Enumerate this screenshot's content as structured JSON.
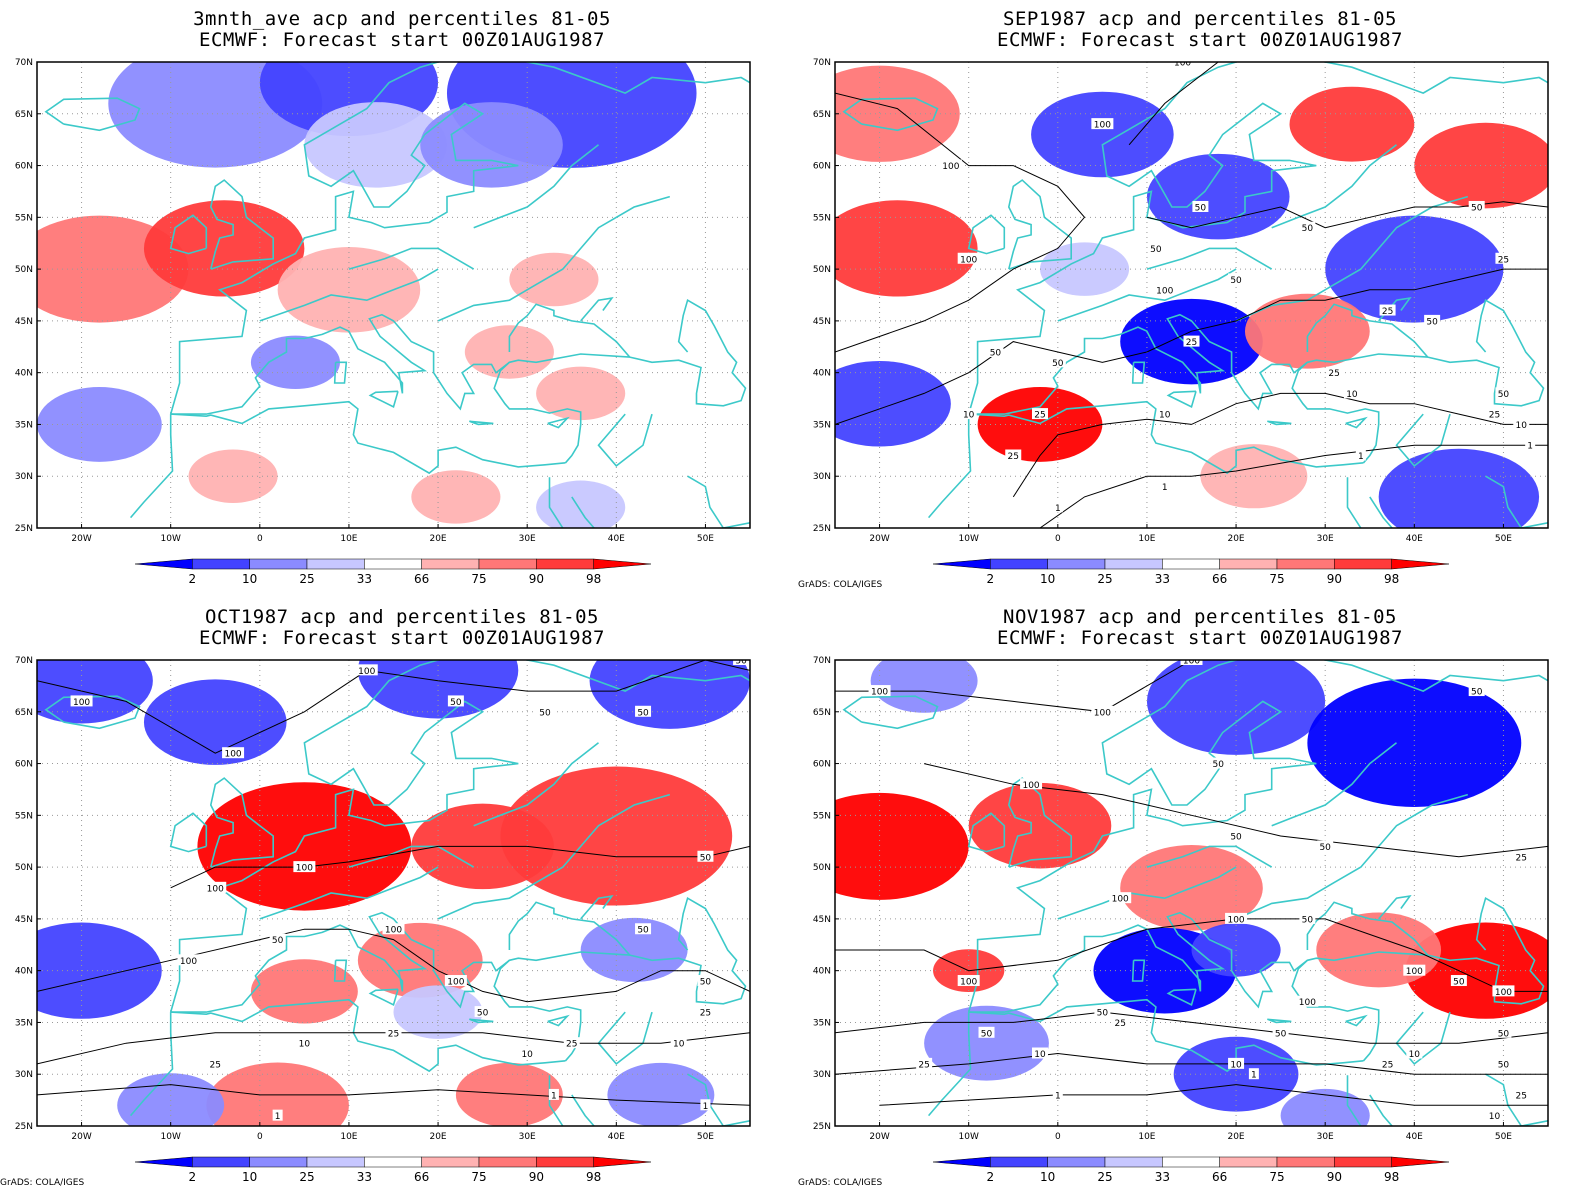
{
  "panels": [
    {
      "title_line1": "3mnth_ave acp and percentiles 81-05",
      "title_line2": "ECMWF: Forecast start 00Z01AUG1987",
      "credit": "",
      "contour_labels": [],
      "blobs": [
        {
          "lon": -5,
          "lat": 66,
          "r": 12,
          "c": "#8b8bff"
        },
        {
          "lon": 10,
          "lat": 68,
          "r": 10,
          "c": "#4343ff"
        },
        {
          "lon": 35,
          "lat": 67,
          "r": 14,
          "c": "#4343ff"
        },
        {
          "lon": 13,
          "lat": 62,
          "r": 8,
          "c": "#c7c7ff"
        },
        {
          "lon": 26,
          "lat": 62,
          "r": 8,
          "c": "#8b8bff"
        },
        {
          "lon": -18,
          "lat": 50,
          "r": 10,
          "c": "#ff7777"
        },
        {
          "lon": -4,
          "lat": 52,
          "r": 9,
          "c": "#ff3b3b"
        },
        {
          "lon": 10,
          "lat": 48,
          "r": 8,
          "c": "#ffb2b2"
        },
        {
          "lon": 33,
          "lat": 49,
          "r": 5,
          "c": "#ffb2b2"
        },
        {
          "lon": -18,
          "lat": 35,
          "r": 7,
          "c": "#8b8bff"
        },
        {
          "lon": 4,
          "lat": 41,
          "r": 5,
          "c": "#8b8bff"
        },
        {
          "lon": 36,
          "lat": 38,
          "r": 5,
          "c": "#ffb2b2"
        },
        {
          "lon": 28,
          "lat": 42,
          "r": 5,
          "c": "#ffb2b2"
        },
        {
          "lon": -3,
          "lat": 30,
          "r": 5,
          "c": "#ffb2b2"
        },
        {
          "lon": 22,
          "lat": 28,
          "r": 5,
          "c": "#ffb2b2"
        },
        {
          "lon": 36,
          "lat": 27,
          "r": 5,
          "c": "#c7c7ff"
        }
      ]
    },
    {
      "title_line1": "SEP1987 acp and percentiles 81-05",
      "title_line2": "ECMWF: Forecast start 00Z01AUG1987",
      "credit": "GrADS: COLA/IGES",
      "contour_labels": [
        {
          "t": "100",
          "lon": 14,
          "lat": 70
        },
        {
          "t": "100",
          "lon": 5,
          "lat": 64
        },
        {
          "t": "100",
          "lon": -12,
          "lat": 60
        },
        {
          "t": "50",
          "lon": 16,
          "lat": 56
        },
        {
          "t": "50",
          "lon": 47,
          "lat": 56
        },
        {
          "t": "50",
          "lon": 28,
          "lat": 54
        },
        {
          "t": "50",
          "lon": 11,
          "lat": 52
        },
        {
          "t": "100",
          "lon": -10,
          "lat": 51
        },
        {
          "t": "50",
          "lon": 20,
          "lat": 49
        },
        {
          "t": "25",
          "lon": 50,
          "lat": 51
        },
        {
          "t": "100",
          "lon": 12,
          "lat": 48
        },
        {
          "t": "25",
          "lon": 37,
          "lat": 46
        },
        {
          "t": "50",
          "lon": 42,
          "lat": 45
        },
        {
          "t": "25",
          "lon": 15,
          "lat": 43
        },
        {
          "t": "50",
          "lon": -7,
          "lat": 42
        },
        {
          "t": "50",
          "lon": 0,
          "lat": 41
        },
        {
          "t": "25",
          "lon": 31,
          "lat": 40
        },
        {
          "t": "10",
          "lon": 33,
          "lat": 38
        },
        {
          "t": "50",
          "lon": 50,
          "lat": 38
        },
        {
          "t": "25",
          "lon": 49,
          "lat": 36
        },
        {
          "t": "10",
          "lon": -10,
          "lat": 36
        },
        {
          "t": "25",
          "lon": -2,
          "lat": 36
        },
        {
          "t": "10",
          "lon": 12,
          "lat": 36
        },
        {
          "t": "10",
          "lon": 52,
          "lat": 35
        },
        {
          "t": "1",
          "lon": 34,
          "lat": 32
        },
        {
          "t": "25",
          "lon": -5,
          "lat": 32
        },
        {
          "t": "1",
          "lon": 12,
          "lat": 29
        },
        {
          "t": "1",
          "lon": 0,
          "lat": 27
        },
        {
          "t": "1",
          "lon": 53,
          "lat": 33
        }
      ],
      "blobs": [
        {
          "lon": -20,
          "lat": 65,
          "r": 9,
          "c": "#ff7777"
        },
        {
          "lon": 5,
          "lat": 63,
          "r": 8,
          "c": "#4343ff"
        },
        {
          "lon": 18,
          "lat": 57,
          "r": 8,
          "c": "#4343ff"
        },
        {
          "lon": 33,
          "lat": 64,
          "r": 7,
          "c": "#ff3b3b"
        },
        {
          "lon": 48,
          "lat": 60,
          "r": 8,
          "c": "#ff3b3b"
        },
        {
          "lon": -18,
          "lat": 52,
          "r": 9,
          "c": "#ff3b3b"
        },
        {
          "lon": 40,
          "lat": 50,
          "r": 10,
          "c": "#4343ff"
        },
        {
          "lon": 15,
          "lat": 43,
          "r": 8,
          "c": "#0000ff"
        },
        {
          "lon": 28,
          "lat": 44,
          "r": 7,
          "c": "#ff7777"
        },
        {
          "lon": -20,
          "lat": 37,
          "r": 8,
          "c": "#4343ff"
        },
        {
          "lon": -2,
          "lat": 35,
          "r": 7,
          "c": "#ff0000"
        },
        {
          "lon": 45,
          "lat": 28,
          "r": 9,
          "c": "#4343ff"
        },
        {
          "lon": 3,
          "lat": 50,
          "r": 5,
          "c": "#c7c7ff"
        },
        {
          "lon": 22,
          "lat": 30,
          "r": 6,
          "c": "#ffb2b2"
        }
      ]
    },
    {
      "title_line1": "OCT1987 acp and percentiles 81-05",
      "title_line2": "ECMWF: Forecast start 00Z01AUG1987",
      "credit": "GrADS: COLA/IGES",
      "contour_labels": [
        {
          "t": "100",
          "lon": -20,
          "lat": 66
        },
        {
          "t": "100",
          "lon": 12,
          "lat": 69
        },
        {
          "t": "50",
          "lon": 54,
          "lat": 70
        },
        {
          "t": "50",
          "lon": 22,
          "lat": 66
        },
        {
          "t": "50",
          "lon": 32,
          "lat": 65
        },
        {
          "t": "50",
          "lon": 43,
          "lat": 65
        },
        {
          "t": "100",
          "lon": -3,
          "lat": 61
        },
        {
          "t": "100",
          "lon": 5,
          "lat": 50
        },
        {
          "t": "50",
          "lon": 50,
          "lat": 51
        },
        {
          "t": "100",
          "lon": -5,
          "lat": 48
        },
        {
          "t": "100",
          "lon": 15,
          "lat": 44
        },
        {
          "t": "50",
          "lon": 43,
          "lat": 44
        },
        {
          "t": "50",
          "lon": 2,
          "lat": 43
        },
        {
          "t": "100",
          "lon": -8,
          "lat": 41
        },
        {
          "t": "100",
          "lon": 22,
          "lat": 39
        },
        {
          "t": "50",
          "lon": 50,
          "lat": 39
        },
        {
          "t": "50",
          "lon": 25,
          "lat": 36
        },
        {
          "t": "25",
          "lon": 50,
          "lat": 36
        },
        {
          "t": "25",
          "lon": 15,
          "lat": 34
        },
        {
          "t": "25",
          "lon": 35,
          "lat": 33
        },
        {
          "t": "10",
          "lon": 5,
          "lat": 33
        },
        {
          "t": "10",
          "lon": 30,
          "lat": 32
        },
        {
          "t": "10",
          "lon": 47,
          "lat": 33
        },
        {
          "t": "25",
          "lon": -5,
          "lat": 31
        },
        {
          "t": "1",
          "lon": 33,
          "lat": 28
        },
        {
          "t": "1",
          "lon": 50,
          "lat": 27
        },
        {
          "t": "1",
          "lon": 2,
          "lat": 26
        }
      ],
      "blobs": [
        {
          "lon": -20,
          "lat": 68,
          "r": 8,
          "c": "#4343ff"
        },
        {
          "lon": -5,
          "lat": 64,
          "r": 8,
          "c": "#4343ff"
        },
        {
          "lon": 20,
          "lat": 69,
          "r": 9,
          "c": "#4343ff"
        },
        {
          "lon": 46,
          "lat": 68,
          "r": 9,
          "c": "#4343ff"
        },
        {
          "lon": 5,
          "lat": 52,
          "r": 12,
          "c": "#ff0000"
        },
        {
          "lon": 40,
          "lat": 53,
          "r": 13,
          "c": "#ff3b3b"
        },
        {
          "lon": 25,
          "lat": 52,
          "r": 8,
          "c": "#ff3b3b"
        },
        {
          "lon": -20,
          "lat": 40,
          "r": 9,
          "c": "#4343ff"
        },
        {
          "lon": 18,
          "lat": 41,
          "r": 7,
          "c": "#ff7777"
        },
        {
          "lon": 5,
          "lat": 38,
          "r": 6,
          "c": "#ff7777"
        },
        {
          "lon": 42,
          "lat": 42,
          "r": 6,
          "c": "#8b8bff"
        },
        {
          "lon": 2,
          "lat": 27,
          "r": 8,
          "c": "#ff7777"
        },
        {
          "lon": -10,
          "lat": 27,
          "r": 6,
          "c": "#8b8bff"
        },
        {
          "lon": 28,
          "lat": 28,
          "r": 6,
          "c": "#ff7777"
        },
        {
          "lon": 45,
          "lat": 28,
          "r": 6,
          "c": "#8b8bff"
        },
        {
          "lon": 20,
          "lat": 36,
          "r": 5,
          "c": "#c7c7ff"
        }
      ]
    },
    {
      "title_line1": "NOV1987 acp and percentiles 81-05",
      "title_line2": "ECMWF: Forecast start 00Z01AUG1987",
      "credit": "GrADS: COLA/IGES",
      "contour_labels": [
        {
          "t": "100",
          "lon": 15,
          "lat": 70
        },
        {
          "t": "100",
          "lon": -20,
          "lat": 67
        },
        {
          "t": "100",
          "lon": 5,
          "lat": 65
        },
        {
          "t": "50",
          "lon": 47,
          "lat": 67
        },
        {
          "t": "50",
          "lon": 18,
          "lat": 60
        },
        {
          "t": "100",
          "lon": -3,
          "lat": 58
        },
        {
          "t": "50",
          "lon": 20,
          "lat": 53
        },
        {
          "t": "50",
          "lon": 30,
          "lat": 52
        },
        {
          "t": "25",
          "lon": 52,
          "lat": 51
        },
        {
          "t": "100",
          "lon": 7,
          "lat": 47
        },
        {
          "t": "100",
          "lon": 20,
          "lat": 45
        },
        {
          "t": "50",
          "lon": 28,
          "lat": 45
        },
        {
          "t": "100",
          "lon": -10,
          "lat": 39
        },
        {
          "t": "100",
          "lon": 40,
          "lat": 40
        },
        {
          "t": "50",
          "lon": 45,
          "lat": 39
        },
        {
          "t": "100",
          "lon": 50,
          "lat": 38
        },
        {
          "t": "100",
          "lon": 28,
          "lat": 37
        },
        {
          "t": "50",
          "lon": 5,
          "lat": 36
        },
        {
          "t": "25",
          "lon": 7,
          "lat": 35
        },
        {
          "t": "50",
          "lon": 25,
          "lat": 34
        },
        {
          "t": "50",
          "lon": 50,
          "lat": 34
        },
        {
          "t": "50",
          "lon": -8,
          "lat": 34
        },
        {
          "t": "10",
          "lon": 40,
          "lat": 32
        },
        {
          "t": "50",
          "lon": 50,
          "lat": 31
        },
        {
          "t": "25",
          "lon": 37,
          "lat": 31
        },
        {
          "t": "10",
          "lon": -2,
          "lat": 32
        },
        {
          "t": "10",
          "lon": 20,
          "lat": 31
        },
        {
          "t": "25",
          "lon": -15,
          "lat": 31
        },
        {
          "t": "1",
          "lon": 22,
          "lat": 30
        },
        {
          "t": "25",
          "lon": 52,
          "lat": 28
        },
        {
          "t": "1",
          "lon": 0,
          "lat": 28
        },
        {
          "t": "10",
          "lon": 49,
          "lat": 26
        }
      ],
      "blobs": [
        {
          "lon": 20,
          "lat": 66,
          "r": 10,
          "c": "#4343ff"
        },
        {
          "lon": 40,
          "lat": 62,
          "r": 12,
          "c": "#0000ff"
        },
        {
          "lon": -15,
          "lat": 68,
          "r": 6,
          "c": "#8b8bff"
        },
        {
          "lon": -20,
          "lat": 52,
          "r": 10,
          "c": "#ff0000"
        },
        {
          "lon": -2,
          "lat": 54,
          "r": 8,
          "c": "#ff3b3b"
        },
        {
          "lon": 15,
          "lat": 48,
          "r": 8,
          "c": "#ff7777"
        },
        {
          "lon": 12,
          "lat": 40,
          "r": 8,
          "c": "#0000ff"
        },
        {
          "lon": 20,
          "lat": 42,
          "r": 5,
          "c": "#4343ff"
        },
        {
          "lon": 48,
          "lat": 40,
          "r": 9,
          "c": "#ff0000"
        },
        {
          "lon": 36,
          "lat": 42,
          "r": 7,
          "c": "#ff7777"
        },
        {
          "lon": -8,
          "lat": 33,
          "r": 7,
          "c": "#8b8bff"
        },
        {
          "lon": 20,
          "lat": 30,
          "r": 7,
          "c": "#4343ff"
        },
        {
          "lon": -10,
          "lat": 40,
          "r": 4,
          "c": "#ff3b3b"
        },
        {
          "lon": 30,
          "lat": 26,
          "r": 5,
          "c": "#8b8bff"
        }
      ]
    }
  ],
  "map_axes": {
    "lon_ticks": [
      {
        "v": -20,
        "label": "20W"
      },
      {
        "v": -10,
        "label": "10W"
      },
      {
        "v": 0,
        "label": "0"
      },
      {
        "v": 10,
        "label": "10E"
      },
      {
        "v": 20,
        "label": "20E"
      },
      {
        "v": 30,
        "label": "30E"
      },
      {
        "v": 40,
        "label": "40E"
      },
      {
        "v": 50,
        "label": "50E"
      }
    ],
    "lat_ticks": [
      {
        "v": 70,
        "label": "70N"
      },
      {
        "v": 65,
        "label": "65N"
      },
      {
        "v": 60,
        "label": "60N"
      },
      {
        "v": 55,
        "label": "55N"
      },
      {
        "v": 50,
        "label": "50N"
      },
      {
        "v": 45,
        "label": "45N"
      },
      {
        "v": 40,
        "label": "40N"
      },
      {
        "v": 35,
        "label": "35N"
      },
      {
        "v": 30,
        "label": "30N"
      },
      {
        "v": 25,
        "label": "25N"
      }
    ],
    "lon_range": [
      -25,
      55
    ],
    "lat_range": [
      25,
      70
    ]
  },
  "colorbar": {
    "thresholds": [
      "2",
      "10",
      "25",
      "33",
      "66",
      "75",
      "90",
      "98"
    ],
    "colors": [
      "#0000ff",
      "#4343ff",
      "#8b8bff",
      "#c7c7ff",
      "#ffffff",
      "#ffb2b2",
      "#ff7777",
      "#ff3b3b",
      "#ff0000"
    ]
  },
  "colors": {
    "coastline": "#3cc9c9",
    "grid": "#9a9a9a",
    "contour": "#000000"
  }
}
